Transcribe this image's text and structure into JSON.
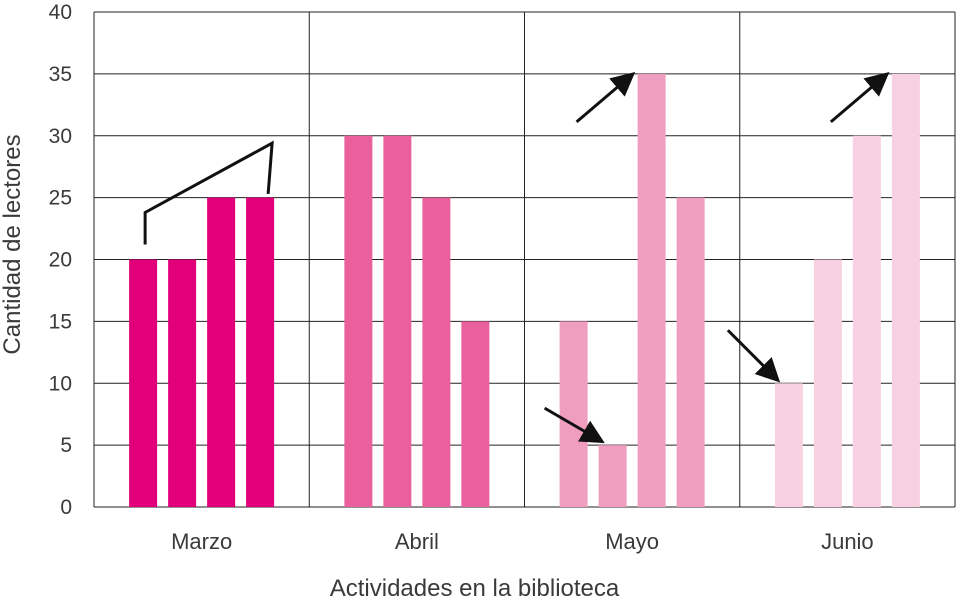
{
  "chart_data": {
    "type": "bar",
    "xlabel": "Actividades en la biblioteca",
    "ylabel": "Cantidad de lectores",
    "ylim": [
      0,
      40
    ],
    "yticks": [
      0,
      5,
      10,
      15,
      20,
      25,
      30,
      35,
      40
    ],
    "grid": true,
    "legend": "none",
    "categories": [
      "Marzo",
      "Abril",
      "Mayo",
      "Junio"
    ],
    "groups": [
      {
        "category": "Marzo",
        "values": [
          20,
          20,
          25,
          25
        ],
        "color": "#e2007a"
      },
      {
        "category": "Abril",
        "values": [
          30,
          30,
          25,
          15
        ],
        "color": "#e9609c"
      },
      {
        "category": "Mayo",
        "values": [
          15,
          5,
          35,
          25
        ],
        "color": "#f09ec0"
      },
      {
        "category": "Junio",
        "values": [
          10,
          20,
          30,
          35
        ],
        "color": "#f7d0e1"
      }
    ],
    "annotations": [
      {
        "type": "bracket",
        "category": "Marzo",
        "note": "línea ascendente sobre las barras"
      },
      {
        "type": "arrow",
        "category": "Mayo",
        "points_to_bar": 1,
        "direction": "down-right"
      },
      {
        "type": "arrow",
        "category": "Mayo",
        "points_to_bar": 2,
        "direction": "up-right"
      },
      {
        "type": "arrow",
        "category": "Junio",
        "points_to_bar": 0,
        "direction": "down-right"
      },
      {
        "type": "arrow",
        "category": "Junio",
        "points_to_bar": 3,
        "direction": "up-right"
      }
    ]
  }
}
